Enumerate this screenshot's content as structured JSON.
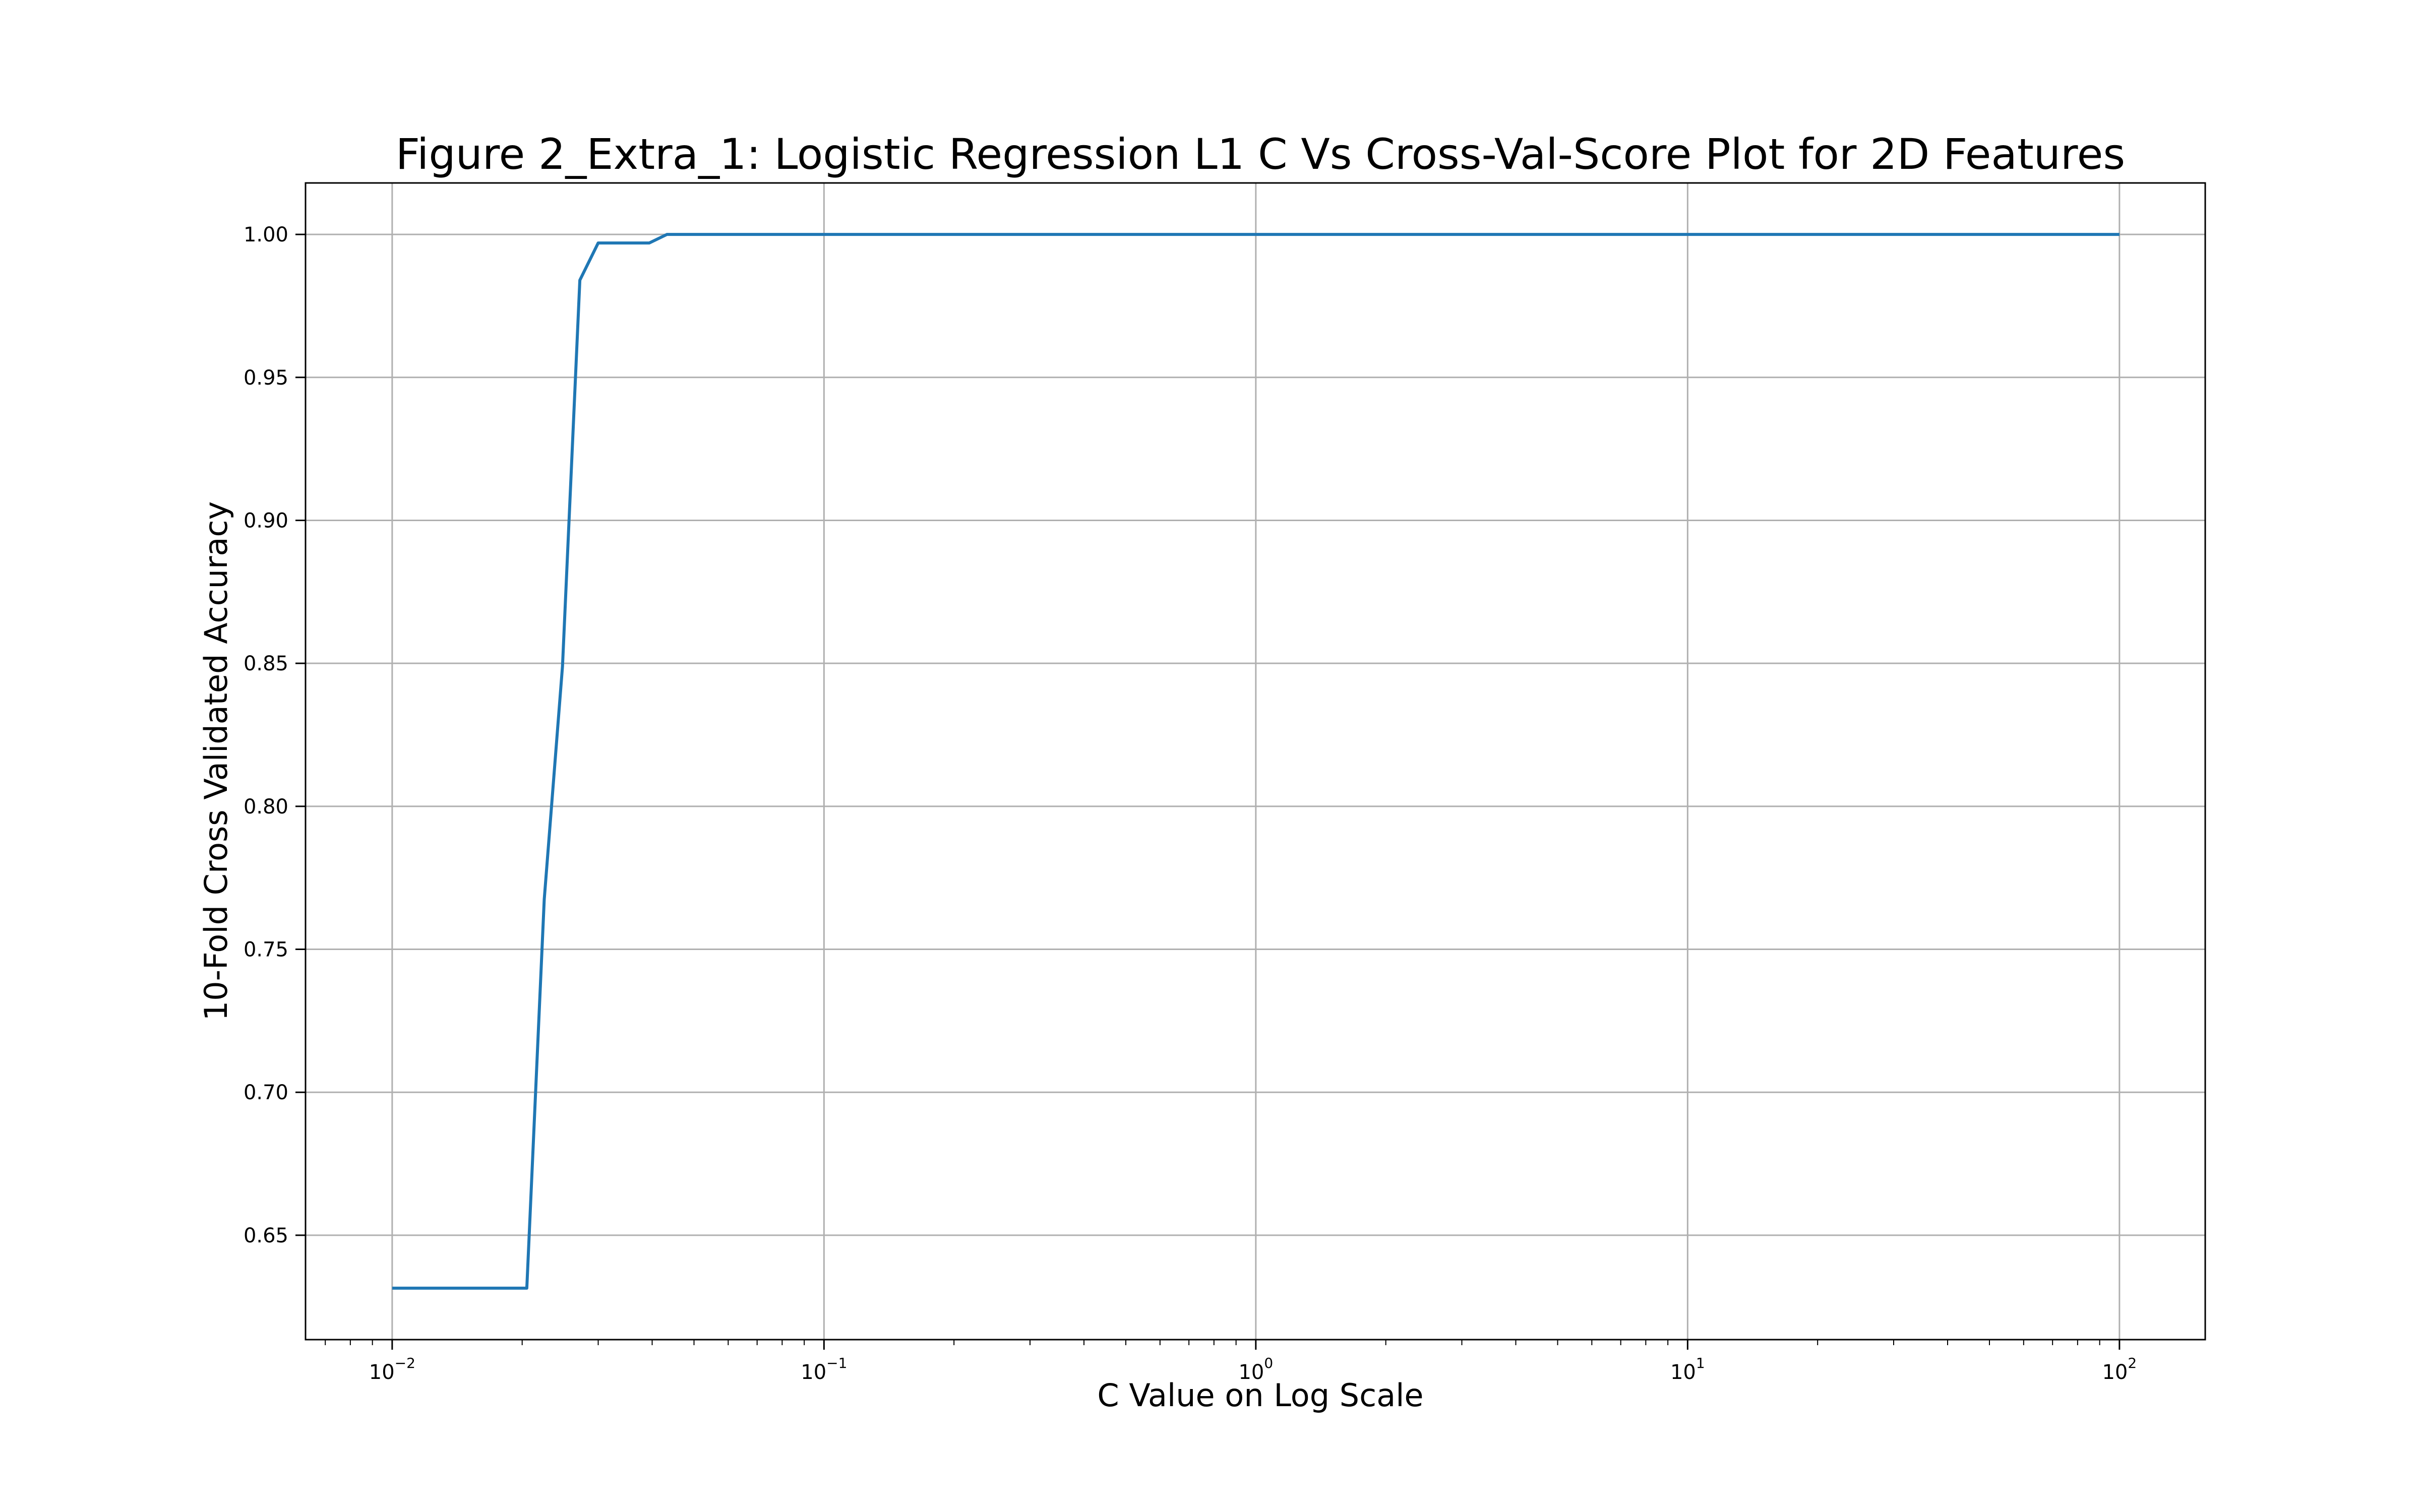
{
  "chart_data": {
    "type": "line",
    "title": "Figure 2_Extra_1: Logistic Regression L1 C Vs Cross-Val-Score Plot for 2D Features",
    "xlabel": "C Value on Log Scale",
    "ylabel": "10-Fold Cross Validated Accuracy",
    "xscale": "log",
    "xlim": [
      0.0063,
      158
    ],
    "ylim": [
      0.6135,
      1.018
    ],
    "grid": true,
    "color": "#1f77b4",
    "x_ticks": [
      {
        "value": 0.01,
        "base": "10",
        "exp": "−2"
      },
      {
        "value": 0.1,
        "base": "10",
        "exp": "−1"
      },
      {
        "value": 1,
        "base": "10",
        "exp": "0"
      },
      {
        "value": 10,
        "base": "10",
        "exp": "1"
      },
      {
        "value": 100,
        "base": "10",
        "exp": "2"
      }
    ],
    "y_ticks": [
      {
        "value": 0.65,
        "label": "0.65"
      },
      {
        "value": 0.7,
        "label": "0.70"
      },
      {
        "value": 0.75,
        "label": "0.75"
      },
      {
        "value": 0.8,
        "label": "0.80"
      },
      {
        "value": 0.85,
        "label": "0.85"
      },
      {
        "value": 0.9,
        "label": "0.90"
      },
      {
        "value": 0.95,
        "label": "0.95"
      },
      {
        "value": 1.0,
        "label": "1.00"
      }
    ],
    "series": [
      {
        "x": [
          0.01,
          0.0205,
          0.0225,
          0.0248,
          0.0272,
          0.03,
          0.0394,
          0.0433,
          0.05,
          0.1,
          0.2,
          0.5,
          1,
          2,
          5,
          10,
          20,
          50,
          100
        ],
        "y": [
          0.6315,
          0.6315,
          0.7675,
          0.849,
          0.984,
          0.997,
          0.997,
          1.0,
          1.0,
          1.0,
          1.0,
          1.0,
          1.0,
          1.0,
          1.0,
          1.0,
          1.0,
          1.0,
          1.0
        ]
      }
    ]
  }
}
